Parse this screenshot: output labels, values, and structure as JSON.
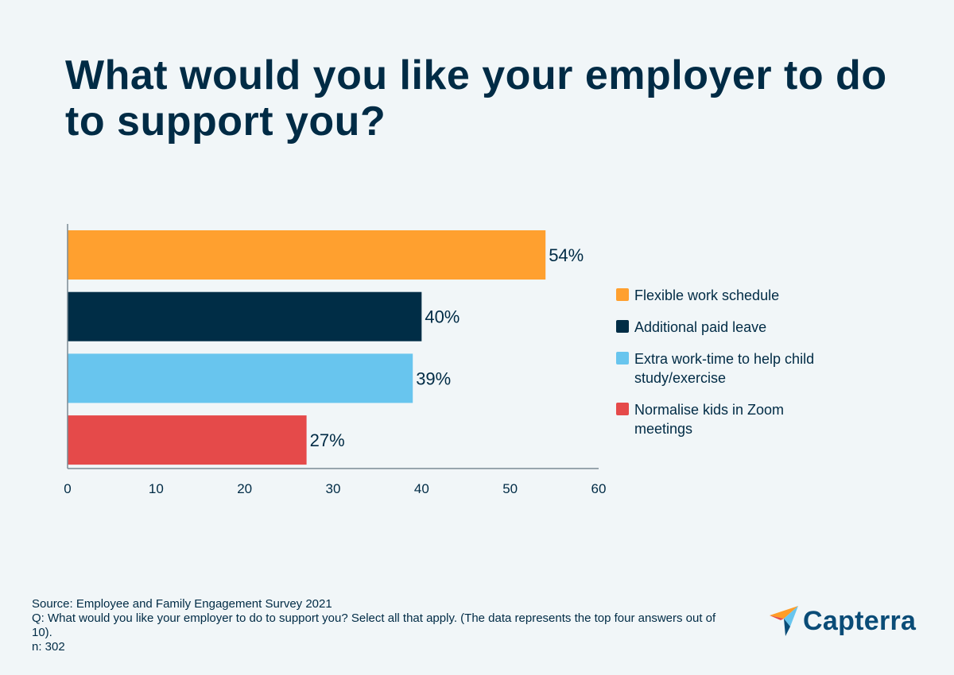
{
  "title": "What would you like your employer to do to support you?",
  "chart_data": {
    "type": "bar",
    "orientation": "horizontal",
    "categories": [
      "Flexible work schedule",
      "Additional paid leave",
      "Extra work-time to help child study/exercise",
      "Normalise kids in Zoom meetings"
    ],
    "values": [
      54,
      40,
      39,
      27
    ],
    "value_labels": [
      "54%",
      "40%",
      "39%",
      "27%"
    ],
    "colors": [
      "#ffa02f",
      "#002d46",
      "#68c5ee",
      "#e54a4a"
    ],
    "xlim": [
      0,
      60
    ],
    "xticks": [
      0,
      10,
      20,
      30,
      40,
      50,
      60
    ],
    "legend_position": "right",
    "grid": false
  },
  "legend": [
    {
      "label": "Flexible work schedule",
      "color": "#ffa02f"
    },
    {
      "label": "Additional paid leave",
      "color": "#002d46"
    },
    {
      "label": "Extra work-time to help child study/exercise",
      "color": "#68c5ee"
    },
    {
      "label": "Normalise kids in Zoom meetings",
      "color": "#e54a4a"
    }
  ],
  "footer": {
    "source": "Source: Employee and Family Engagement Survey 2021",
    "question": "Q: What would you like your employer to do to support you? Select all that apply.  (The data represents the top four answers out of 10).",
    "n": "n: 302"
  },
  "logo": {
    "text": "Capterra",
    "icon": "capterra-arrow-icon"
  }
}
